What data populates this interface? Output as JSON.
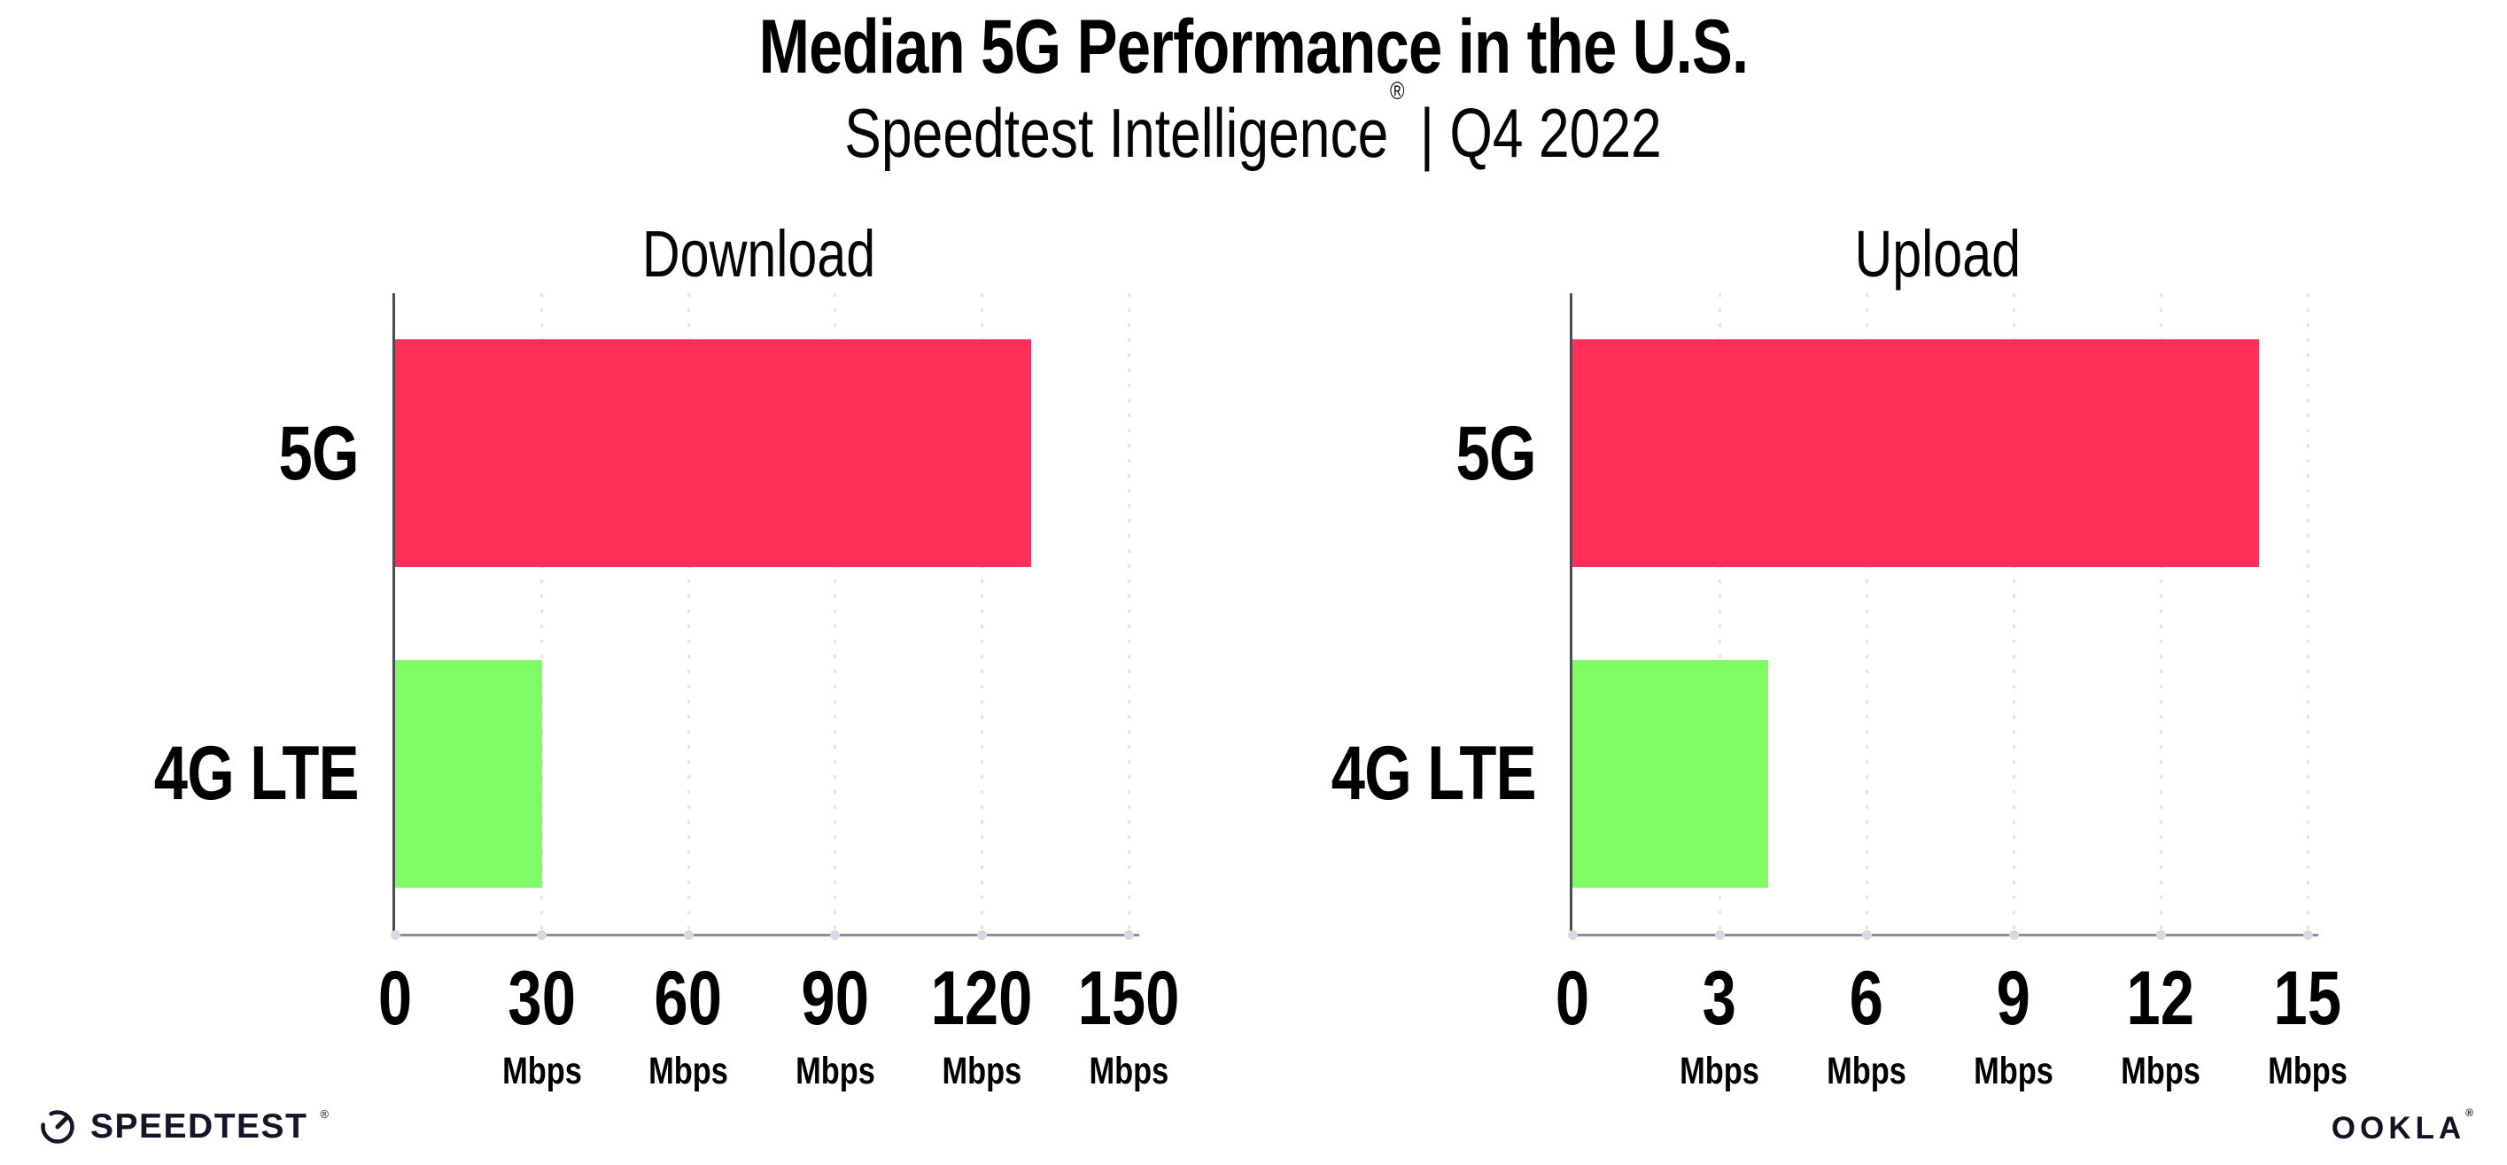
{
  "header": {
    "title": "Median 5G Performance in the U.S.",
    "subtitle_brand": "Speedtest Intelligence",
    "subtitle_reg": "®",
    "subtitle_rest": " | Q4 2022"
  },
  "chart_data": [
    {
      "type": "bar",
      "orientation": "horizontal",
      "title": "Download",
      "categories": [
        "5G",
        "4G LTE"
      ],
      "values": [
        130,
        30
      ],
      "value_unit": "Mbps",
      "xlim": [
        0,
        150
      ],
      "xticks": [
        0,
        30,
        60,
        90,
        120,
        150
      ],
      "xtick_unit_label": "Mbps",
      "bar_colors": [
        "#FF2E58",
        "#80FC66"
      ],
      "grid": "dotted-vertical",
      "legend": "none"
    },
    {
      "type": "bar",
      "orientation": "horizontal",
      "title": "Upload",
      "categories": [
        "5G",
        "4G LTE"
      ],
      "values": [
        14,
        4
      ],
      "value_unit": "Mbps",
      "xlim": [
        0,
        15
      ],
      "xticks": [
        0,
        3,
        6,
        9,
        12,
        15
      ],
      "xtick_unit_label": "Mbps",
      "bar_colors": [
        "#FF2E58",
        "#80FC66"
      ],
      "grid": "dotted-vertical",
      "legend": "none"
    }
  ],
  "footer": {
    "speedtest_label": "SPEEDTEST",
    "speedtest_reg": "®",
    "ookla_label": "OOKLA",
    "ookla_reg": "®"
  },
  "colors": {
    "bar_5g": "#FF2E58",
    "bar_4g_lte": "#80FC66",
    "axis_left_spine": "#4b4c56",
    "axis_bottom_spine": "#8c8d97",
    "gridline": "#e2e3ee",
    "text": "#000000",
    "brand_dark": "#141526",
    "background": "#ffffff"
  }
}
